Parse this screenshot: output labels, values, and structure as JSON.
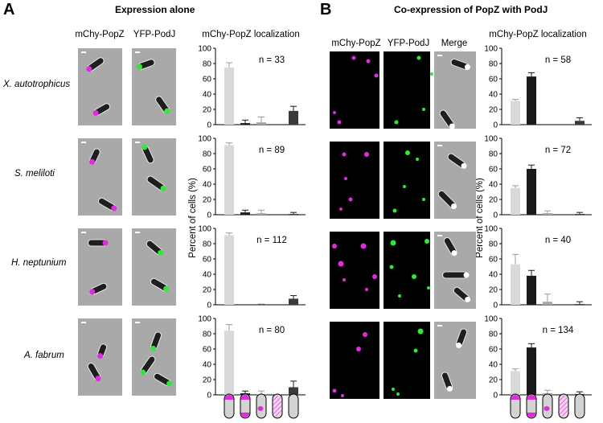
{
  "panel_a": {
    "letter": "A",
    "heading": "Expression alone",
    "image_columns": [
      "mChy-PopZ",
      "YFP-PodJ"
    ],
    "chart_header": "mChy-PopZ localization"
  },
  "panel_b": {
    "letter": "B",
    "heading": "Co-expression of PopZ with PodJ",
    "image_columns": [
      "mChy-PopZ",
      "YFP-PodJ",
      "Merge"
    ],
    "chart_header": "mChy-PopZ localization"
  },
  "species": [
    "X. autotrophicus",
    "S. meliloti",
    "H. neptunium",
    "A. fabrum"
  ],
  "y_axis_label": "Percent of cells (%)",
  "y_ticks": [
    "0",
    "20",
    "40",
    "60",
    "80",
    "100"
  ],
  "colors": {
    "cat1": "#d9d9d9",
    "cat2": "#1a1a1a",
    "cat3": "#a6a6a6",
    "cat4": "#f2c4e8",
    "cat5": "#3a3a3a",
    "magenta": "#e22be0",
    "green": "#2fe83a",
    "phase": "#a9a9a9"
  },
  "chart_data": [
    {
      "type": "bar",
      "panel": "A",
      "species": "X. autotrophicus",
      "n_label": "n = 33",
      "ylim": [
        0,
        100
      ],
      "categories": [
        "1",
        "2",
        "3",
        "4",
        "5"
      ],
      "values": [
        75,
        2,
        3,
        0,
        18
      ],
      "errors": [
        6,
        4,
        7,
        0,
        6
      ]
    },
    {
      "type": "bar",
      "panel": "A",
      "species": "S. meliloti",
      "n_label": "n = 89",
      "ylim": [
        0,
        100
      ],
      "categories": [
        "1",
        "2",
        "3",
        "4",
        "5"
      ],
      "values": [
        91,
        3,
        2,
        0,
        1
      ],
      "errors": [
        3,
        3,
        4,
        0,
        2
      ]
    },
    {
      "type": "bar",
      "panel": "A",
      "species": "H. neptunium",
      "n_label": "n = 112",
      "ylim": [
        0,
        100
      ],
      "categories": [
        "1",
        "2",
        "3",
        "4",
        "5"
      ],
      "values": [
        91,
        0,
        0,
        0,
        8
      ],
      "errors": [
        3,
        0,
        1,
        0,
        4
      ]
    },
    {
      "type": "bar",
      "panel": "A",
      "species": "A. fabrum",
      "n_label": "n = 80",
      "ylim": [
        0,
        100
      ],
      "categories": [
        "1",
        "2",
        "3",
        "4",
        "5"
      ],
      "values": [
        84,
        2,
        1,
        0,
        10
      ],
      "errors": [
        8,
        3,
        4,
        0,
        8
      ]
    },
    {
      "type": "bar",
      "panel": "B",
      "species": "X. autotrophicus",
      "n_label": "n = 58",
      "ylim": [
        0,
        100
      ],
      "categories": [
        "1",
        "2",
        "3",
        "4",
        "5"
      ],
      "values": [
        31,
        63,
        0,
        0,
        5
      ],
      "errors": [
        2,
        5,
        0,
        0,
        4
      ]
    },
    {
      "type": "bar",
      "panel": "B",
      "species": "S. meliloti",
      "n_label": "n = 72",
      "ylim": [
        0,
        100
      ],
      "categories": [
        "1",
        "2",
        "3",
        "4",
        "5"
      ],
      "values": [
        35,
        60,
        2,
        0,
        1
      ],
      "errors": [
        3,
        5,
        3,
        0,
        2
      ]
    },
    {
      "type": "bar",
      "panel": "B",
      "species": "H. neptunium",
      "n_label": "n = 40",
      "ylim": [
        0,
        100
      ],
      "categories": [
        "1",
        "2",
        "3",
        "4",
        "5"
      ],
      "values": [
        53,
        38,
        4,
        0,
        1
      ],
      "errors": [
        13,
        7,
        10,
        0,
        3
      ]
    },
    {
      "type": "bar",
      "panel": "B",
      "species": "A. fabrum",
      "n_label": "n = 134",
      "ylim": [
        0,
        100
      ],
      "categories": [
        "1",
        "2",
        "3",
        "4",
        "5"
      ],
      "values": [
        31,
        62,
        2,
        0,
        1
      ],
      "errors": [
        3,
        5,
        4,
        0,
        3
      ]
    }
  ]
}
